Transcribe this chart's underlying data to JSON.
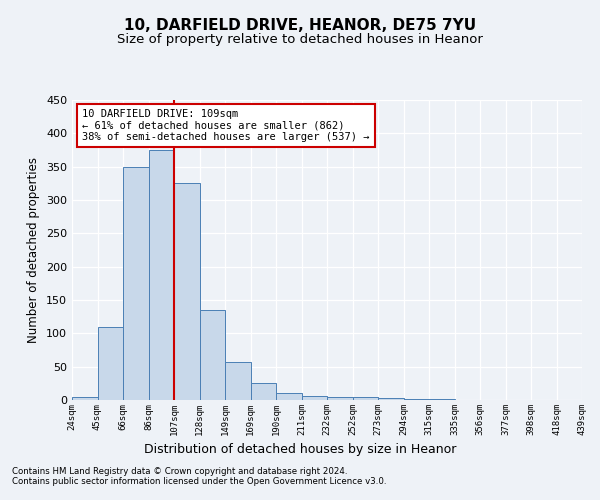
{
  "title1": "10, DARFIELD DRIVE, HEANOR, DE75 7YU",
  "title2": "Size of property relative to detached houses in Heanor",
  "xlabel": "Distribution of detached houses by size in Heanor",
  "ylabel": "Number of detached properties",
  "footnote1": "Contains HM Land Registry data © Crown copyright and database right 2024.",
  "footnote2": "Contains public sector information licensed under the Open Government Licence v3.0.",
  "bar_values": [
    4,
    110,
    350,
    375,
    325,
    135,
    57,
    25,
    10,
    6,
    5,
    5,
    3,
    2,
    1,
    0,
    0,
    0,
    0,
    0
  ],
  "bin_labels": [
    "24sqm",
    "45sqm",
    "66sqm",
    "86sqm",
    "107sqm",
    "128sqm",
    "149sqm",
    "169sqm",
    "190sqm",
    "211sqm",
    "232sqm",
    "252sqm",
    "273sqm",
    "294sqm",
    "315sqm",
    "335sqm",
    "356sqm",
    "377sqm",
    "398sqm",
    "418sqm",
    "439sqm"
  ],
  "bar_color": "#c8d8ea",
  "bar_edge_color": "#4a7fb5",
  "vline_x_index": 4,
  "vline_color": "#cc0000",
  "annotation_line1": "10 DARFIELD DRIVE: 109sqm",
  "annotation_line2": "← 61% of detached houses are smaller (862)",
  "annotation_line3": "38% of semi-detached houses are larger (537) →",
  "annotation_box_color": "#ffffff",
  "annotation_box_edge_color": "#cc0000",
  "ylim": [
    0,
    450
  ],
  "yticks": [
    0,
    50,
    100,
    150,
    200,
    250,
    300,
    350,
    400,
    450
  ],
  "bg_color": "#eef2f7",
  "grid_color": "#ffffff",
  "title1_fontsize": 11,
  "title2_fontsize": 9.5,
  "ylabel_fontsize": 8.5,
  "xlabel_fontsize": 9,
  "footnote_fontsize": 6.2,
  "annotation_fontsize": 7.5,
  "tick_fontsize": 6.5
}
